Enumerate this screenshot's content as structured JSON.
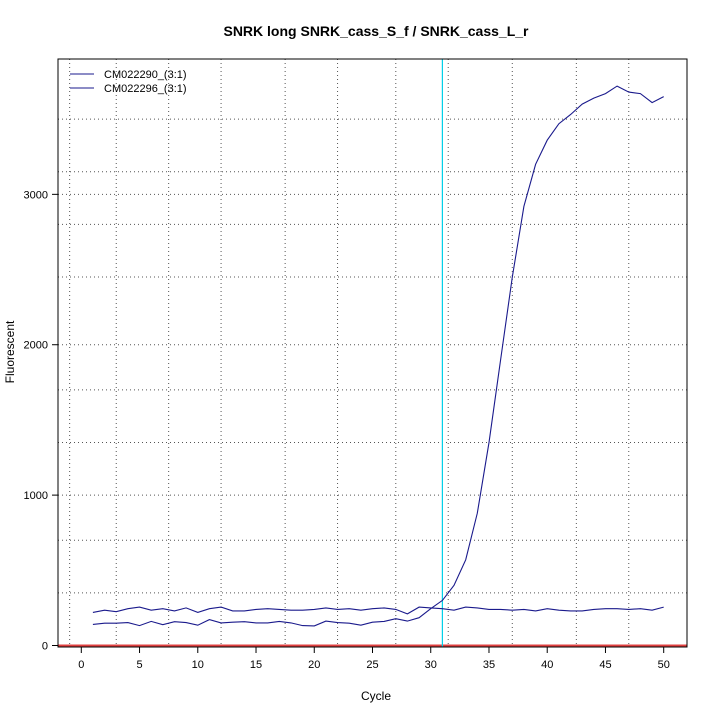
{
  "chart_data": {
    "type": "line",
    "title": "SNRK long SNRK_cass_S_f / SNRK_cass_L_r",
    "xlabel": "Cycle",
    "ylabel": "Fluorescent",
    "xlim": [
      -2,
      52
    ],
    "ylim": [
      -10,
      3900
    ],
    "x_ticks": [
      0,
      5,
      10,
      15,
      20,
      25,
      30,
      35,
      40,
      45,
      50
    ],
    "y_ticks": [
      0,
      1000,
      2000,
      3000
    ],
    "x_grid": [
      -1,
      3,
      7.5,
      12,
      17.5,
      22,
      27,
      31.5,
      37,
      42.5,
      47,
      52
    ],
    "y_grid": [
      350,
      700,
      1000,
      1350,
      1700,
      2000,
      2450,
      2800,
      3000,
      3150,
      3500
    ],
    "grid": true,
    "legend_position": "top-left",
    "threshold_cycle": 31,
    "baseline": 0,
    "colors": {
      "series": "#1a1a8c",
      "threshold": "#00d0e8",
      "baseline": "#e04040",
      "grid": "#555555"
    },
    "x": [
      1,
      2,
      3,
      4,
      5,
      6,
      7,
      8,
      9,
      10,
      11,
      12,
      13,
      14,
      15,
      16,
      17,
      18,
      19,
      20,
      21,
      22,
      23,
      24,
      25,
      26,
      27,
      28,
      29,
      30,
      31,
      32,
      33,
      34,
      35,
      36,
      37,
      38,
      39,
      40,
      41,
      42,
      43,
      44,
      45,
      46,
      47,
      48,
      49,
      50
    ],
    "series": [
      {
        "name": "CM022290_(3:1)",
        "values": [
          220,
          235,
          225,
          245,
          255,
          235,
          245,
          230,
          250,
          220,
          245,
          255,
          230,
          230,
          240,
          245,
          240,
          235,
          235,
          240,
          250,
          240,
          245,
          235,
          245,
          250,
          240,
          210,
          255,
          250,
          245,
          235,
          255,
          250,
          240,
          240,
          235,
          240,
          230,
          245,
          235,
          230,
          230,
          240,
          245,
          245,
          240,
          245,
          235,
          255
        ]
      },
      {
        "name": "CM022296_(3:1)",
        "values": [
          140,
          148,
          148,
          152,
          132,
          160,
          138,
          158,
          152,
          135,
          172,
          150,
          155,
          158,
          150,
          150,
          160,
          150,
          132,
          130,
          162,
          152,
          148,
          135,
          155,
          160,
          178,
          162,
          185,
          245,
          300,
          400,
          570,
          880,
          1350,
          1900,
          2450,
          2920,
          3200,
          3360,
          3470,
          3530,
          3600,
          3640,
          3670,
          3720,
          3680,
          3670,
          3610,
          3650
        ]
      }
    ]
  }
}
